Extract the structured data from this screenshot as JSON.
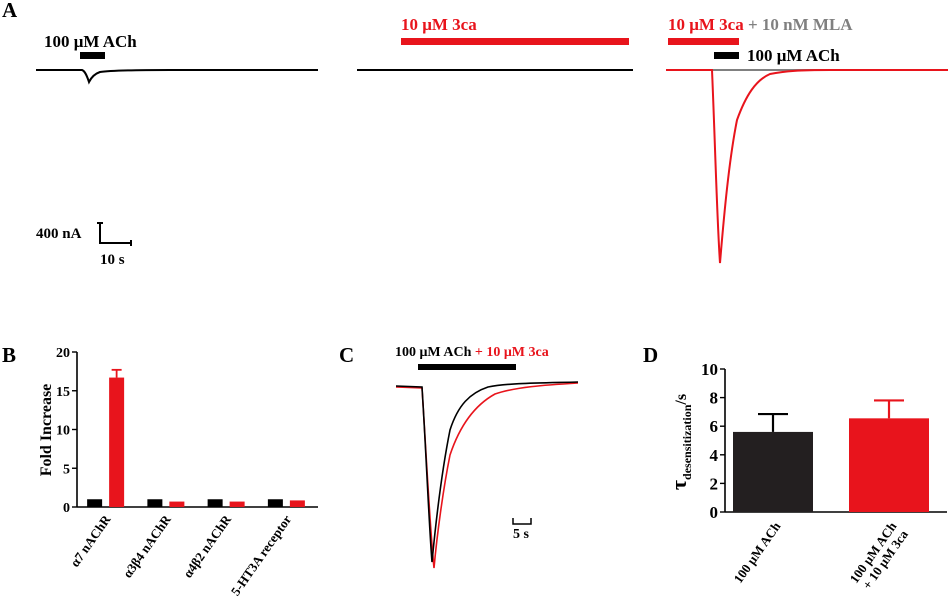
{
  "panels": {
    "A": {
      "label": "A",
      "sub1": {
        "bar_label": "100 μM ACh"
      },
      "sub2": {
        "bar_label": "10 μM 3ca"
      },
      "sub3": {
        "label_red": "10 μM 3ca",
        "label_gray": " + 10 nM MLA",
        "bar_label": "100 μM ACh"
      },
      "scalebar": {
        "y_label": "400 nA",
        "x_label": "10 s"
      }
    },
    "B": {
      "label": "B"
    },
    "C": {
      "label": "C",
      "legend_black": "100 μM ACh",
      "legend_red": " + 10 μM 3ca",
      "scalebar_label": "5 s"
    },
    "D": {
      "label": "D"
    }
  },
  "colors": {
    "black": "#000000",
    "red": "#e8141c",
    "gray": "#808080",
    "bar_black": "#231f20"
  },
  "chart_data": [
    {
      "panel": "B",
      "type": "bar",
      "ylabel": "Fold Increase",
      "ylim": [
        0,
        20
      ],
      "yticks": [
        0,
        5,
        10,
        15,
        20
      ],
      "categories": [
        "α7 nAChR",
        "α3β4 nAChR",
        "α4β2 nAChR",
        "5-HT3A receptor"
      ],
      "series": [
        {
          "color": "black",
          "values": [
            1.0,
            1.0,
            1.0,
            1.0
          ],
          "errors": [
            0,
            0,
            0,
            0
          ]
        },
        {
          "color": "red",
          "values": [
            16.7,
            0.7,
            0.7,
            0.85
          ],
          "errors": [
            1.0,
            0,
            0,
            0
          ]
        }
      ]
    },
    {
      "panel": "D",
      "type": "bar",
      "ylabel": "τdesensitization/s",
      "ylim": [
        0,
        10
      ],
      "yticks": [
        0,
        2,
        4,
        6,
        8,
        10
      ],
      "categories": [
        "100 μM ACh",
        "100 μM ACh + 10 μM 3ca"
      ],
      "values": [
        5.6,
        6.55
      ],
      "errors": [
        1.25,
        1.25
      ],
      "colors": [
        "black",
        "red"
      ]
    }
  ]
}
